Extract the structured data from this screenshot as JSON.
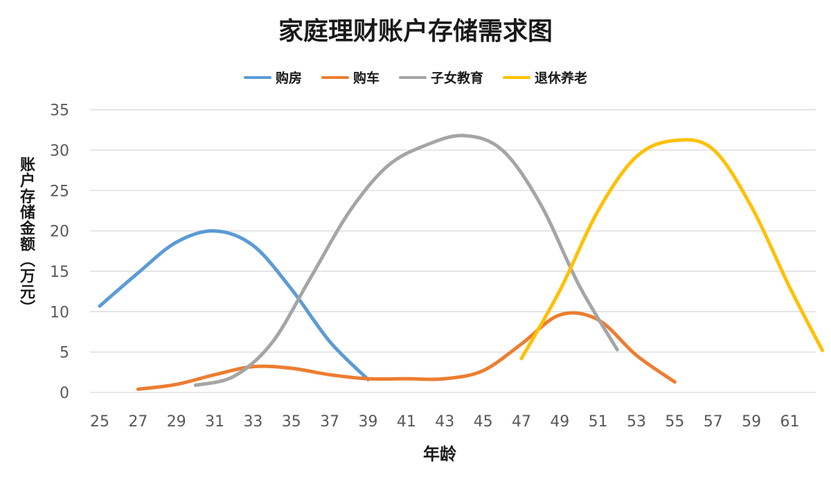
{
  "chart_data": {
    "type": "line",
    "title": "家庭理财账户存储需求图",
    "xlabel": "年龄",
    "ylabel": "账户存储金额（万元）",
    "xlim": [
      25,
      62.7
    ],
    "ylim": [
      0,
      35
    ],
    "x_ticks": [
      25,
      27,
      29,
      31,
      33,
      35,
      37,
      39,
      41,
      43,
      45,
      47,
      49,
      51,
      53,
      55,
      57,
      59,
      61
    ],
    "y_ticks": [
      0,
      5,
      10,
      15,
      20,
      25,
      30,
      35
    ],
    "grid": true,
    "legend_position": "top",
    "series": [
      {
        "name": "购房",
        "color": "#5b9bd5",
        "x": [
          25,
          27,
          29,
          31,
          33,
          35,
          37,
          39
        ],
        "y": [
          10.7,
          14.8,
          18.6,
          20.0,
          18.2,
          12.8,
          6.3,
          1.6
        ]
      },
      {
        "name": "购车",
        "color": "#ed7d31",
        "x": [
          27,
          29,
          31,
          33,
          35,
          37,
          39,
          41,
          43,
          45,
          47,
          49,
          51,
          53,
          55
        ],
        "y": [
          0.4,
          1.0,
          2.2,
          3.2,
          3.0,
          2.2,
          1.7,
          1.7,
          1.7,
          2.7,
          6.0,
          9.6,
          9.0,
          4.6,
          1.3
        ]
      },
      {
        "name": "子女教育",
        "color": "#a5a5a5",
        "x": [
          30,
          32,
          34,
          36,
          38,
          40,
          42,
          44,
          46,
          48,
          50,
          52
        ],
        "y": [
          0.9,
          2.0,
          6.2,
          14.2,
          22.3,
          28.0,
          30.6,
          31.8,
          30.0,
          23.3,
          13.3,
          5.3
        ]
      },
      {
        "name": "退休养老",
        "color": "#ffc000",
        "x": [
          47,
          49,
          51,
          53,
          55,
          57,
          59,
          61,
          62.7
        ],
        "y": [
          4.2,
          12.6,
          22.5,
          29.2,
          31.2,
          30.1,
          23.0,
          13.0,
          5.2
        ]
      }
    ]
  }
}
